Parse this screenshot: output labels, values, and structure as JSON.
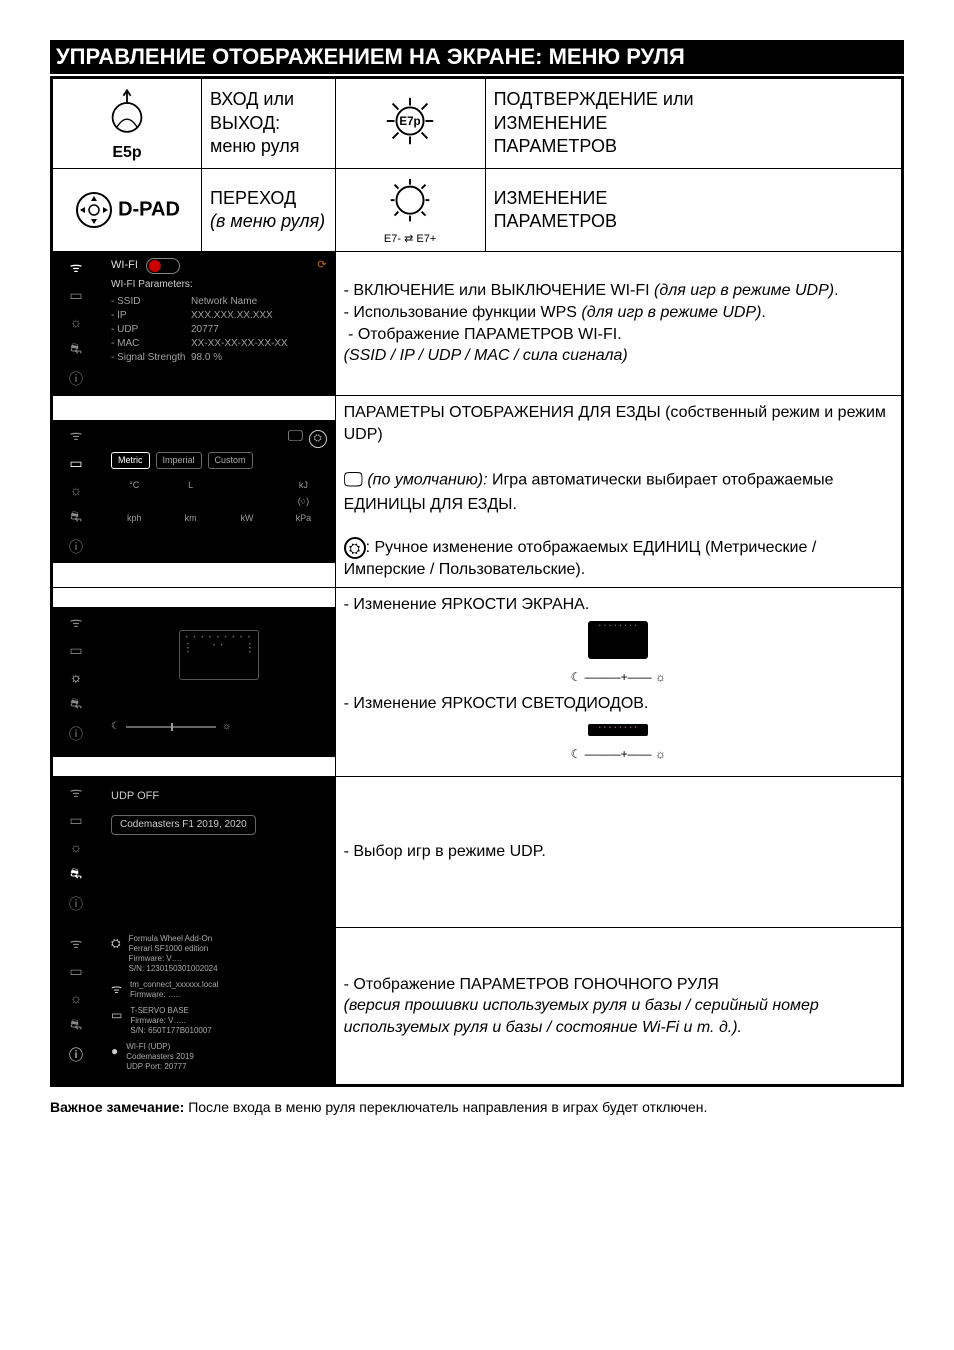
{
  "title": "УПРАВЛЕНИЕ ОТОБРАЖЕНИЕМ НА ЭКРАНЕ: МЕНЮ РУЛЯ",
  "header": {
    "e5_label": "E5p",
    "e5_desc": "ВХОД или ВЫХОД:\nменю руля",
    "e7_label": "E7p",
    "e7_desc": "ПОДТВЕРЖДЕНИЕ или\nИЗМЕНЕНИЕ\nПАРАМЕТРОВ",
    "dpad_label": "D-PAD",
    "dpad_desc_main": "ПЕРЕХОД",
    "dpad_desc_sub": "(в меню руля)",
    "e7pm_left": "E7-",
    "e7pm_right": "E7+",
    "e7pm_desc": "ИЗМЕНЕНИЕ\nПАРАМЕТРОВ"
  },
  "rows": {
    "wifi": {
      "panel": {
        "title": "WI-FI",
        "subtitle": "WI-FI Parameters:",
        "params": [
          {
            "k": "- SSID",
            "v": "Network Name"
          },
          {
            "k": "- IP",
            "v": "XXX.XXX.XX.XXX"
          },
          {
            "k": "- UDP",
            "v": "20777"
          },
          {
            "k": "- MAC",
            "v": "XX-XX-XX-XX-XX-XX"
          },
          {
            "k": "- Signal Strength",
            "v": "98.0 %"
          }
        ]
      },
      "desc": "- ВКЛЮЧЕНИЕ или ВЫКЛЮЧЕНИЕ WI-FI (для игр в режиме UDP).\n- Использование функции WPS (для игр в режиме UDP).\n - Отображение ПАРАМЕТРОВ WI-FI.\n(SSID / IP / UDP / MAC / сила сигнала)"
    },
    "units": {
      "panel": {
        "pills": [
          "Metric",
          "Imperial",
          "Custom"
        ],
        "grid": [
          "",
          "",
          "",
          "",
          "°C",
          "L",
          "",
          "kJ",
          "",
          "",
          "",
          "(○)",
          "kph",
          "km",
          "kW",
          "kPa"
        ]
      },
      "desc_top": "ПАРАМЕТРЫ ОТОБРАЖЕНИЯ ДЛЯ ЕЗДЫ (собственный режим и режим UDP)",
      "desc_default": "(по умолчанию): Игра автоматически выбирает отображаемые ЕДИНИЦЫ ДЛЯ ЕЗДЫ.",
      "desc_manual": ": Ручное изменение отображаемых ЕДИНИЦ (Метрические / Имперские / Пользовательские)."
    },
    "brightness": {
      "desc_screen": "- Изменение ЯРКОСТИ ЭКРАНА.",
      "desc_led": "- Изменение ЯРКОСТИ СВЕТОДИОДОВ."
    },
    "udp": {
      "panel_off": "UDP OFF",
      "panel_game": "Codemasters F1 2019, 2020",
      "desc": "- Выбор игр в режиме UDP."
    },
    "info": {
      "panel": [
        {
          "icon": "wheel",
          "lines": [
            "Formula Wheel Add-On",
            "Ferrari SF1000 edition",
            "Firmware: V….",
            "S/N: 1230150301002024"
          ]
        },
        {
          "icon": "wifi",
          "lines": [
            "tm_connect_xxxxxx.local",
            "Firmware: ….."
          ]
        },
        {
          "icon": "base",
          "lines": [
            "T-SERVO BASE",
            "Firmware: V…..",
            "S/N: 650T177B010007"
          ]
        },
        {
          "icon": "dot",
          "lines": [
            "WI-FI (UDP)",
            "Codemasters 2019",
            "UDP Port: 20777"
          ]
        }
      ],
      "desc_title": "- Отображение ПАРАМЕТРОВ ГОНОЧНОГО РУЛЯ",
      "desc_sub": "(версия прошивки используемых руля и базы / серийный номер используемых руля и базы / состояние Wi-Fi и т. д.)."
    }
  },
  "footnote": {
    "bold": "Важное замечание: ",
    "text": "После входа в меню руля переключатель направления в играх будет отключен."
  },
  "colors": {
    "bg": "#ffffff",
    "panel_bg": "#000000",
    "panel_text": "#a0a0a0",
    "border": "#000000"
  }
}
